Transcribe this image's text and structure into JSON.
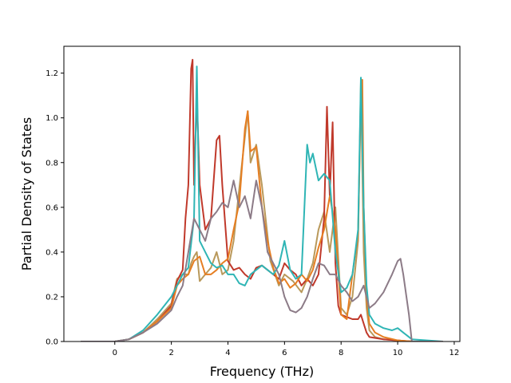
{
  "chart_data": {
    "type": "line",
    "xlabel": "Frequency (THz)",
    "ylabel": "Partial Density of States",
    "xlim": [
      -1.8,
      12.2
    ],
    "ylim": [
      0,
      1.32
    ],
    "xticks": [
      0,
      2,
      4,
      6,
      8,
      10,
      12
    ],
    "yticks": [
      0.0,
      0.2,
      0.4,
      0.6,
      0.8,
      1.0,
      1.2
    ],
    "xtick_labels": [
      "0",
      "2",
      "4",
      "6",
      "8",
      "10",
      "12"
    ],
    "ytick_labels": [
      "0.0",
      "0.2",
      "0.4",
      "0.6",
      "0.8",
      "1.0",
      "1.2"
    ],
    "grid": false,
    "series": [
      {
        "color": "#b9995b",
        "x": [
          -1.2,
          0,
          0.5,
          1.0,
          1.5,
          2.0,
          2.2,
          2.4,
          2.6,
          2.7,
          2.8,
          2.9,
          3.0,
          3.2,
          3.4,
          3.6,
          3.8,
          4.0,
          4.2,
          4.5,
          4.7,
          4.8,
          5.0,
          5.2,
          5.5,
          5.8,
          6.0,
          6.3,
          6.6,
          6.8,
          7.0,
          7.2,
          7.4,
          7.6,
          7.8,
          8.0,
          8.2,
          8.4,
          8.6,
          8.7,
          8.8,
          8.9,
          9.0,
          9.2,
          9.5,
          10.0,
          10.5,
          11.6
        ],
        "y": [
          0,
          0,
          0.01,
          0.04,
          0.1,
          0.17,
          0.28,
          0.3,
          0.3,
          0.35,
          0.38,
          0.4,
          0.27,
          0.3,
          0.33,
          0.4,
          0.3,
          0.32,
          0.45,
          0.8,
          1.03,
          0.8,
          0.88,
          0.7,
          0.36,
          0.25,
          0.3,
          0.27,
          0.22,
          0.28,
          0.35,
          0.5,
          0.58,
          0.4,
          0.6,
          0.15,
          0.12,
          0.2,
          0.45,
          1.16,
          0.4,
          0.15,
          0.05,
          0.02,
          0.01,
          0.005,
          0,
          0
        ]
      },
      {
        "color": "#c0392b",
        "x": [
          -1.2,
          0,
          0.5,
          1.0,
          1.5,
          2.0,
          2.2,
          2.4,
          2.5,
          2.6,
          2.7,
          2.75,
          2.8,
          2.9,
          3.0,
          3.2,
          3.4,
          3.6,
          3.7,
          3.8,
          4.0,
          4.2,
          4.4,
          4.6,
          4.8,
          5.0,
          5.2,
          5.4,
          5.6,
          5.8,
          6.0,
          6.2,
          6.4,
          6.6,
          6.8,
          7.0,
          7.2,
          7.4,
          7.5,
          7.6,
          7.7,
          7.8,
          7.9,
          8.0,
          8.2,
          8.4,
          8.6,
          8.7,
          8.8,
          8.9,
          9.0,
          9.5,
          10.0,
          10.5,
          11.6
        ],
        "y": [
          0,
          0,
          0.01,
          0.04,
          0.09,
          0.16,
          0.27,
          0.32,
          0.55,
          0.7,
          1.22,
          1.26,
          0.7,
          1.1,
          0.7,
          0.5,
          0.55,
          0.9,
          0.92,
          0.7,
          0.36,
          0.32,
          0.33,
          0.3,
          0.28,
          0.33,
          0.34,
          0.32,
          0.3,
          0.28,
          0.35,
          0.32,
          0.3,
          0.25,
          0.28,
          0.25,
          0.3,
          0.55,
          1.05,
          0.65,
          0.98,
          0.35,
          0.16,
          0.12,
          0.11,
          0.1,
          0.1,
          0.12,
          0.08,
          0.04,
          0.02,
          0.01,
          0.005,
          0,
          0
        ]
      },
      {
        "color": "#e67e22",
        "x": [
          -1.2,
          0,
          0.5,
          1.0,
          1.5,
          2.0,
          2.2,
          2.4,
          2.6,
          2.8,
          3.0,
          3.2,
          3.4,
          3.6,
          3.8,
          4.0,
          4.2,
          4.4,
          4.6,
          4.7,
          4.8,
          5.0,
          5.2,
          5.4,
          5.6,
          5.8,
          6.0,
          6.2,
          6.4,
          6.6,
          6.8,
          7.0,
          7.2,
          7.4,
          7.6,
          7.7,
          7.8,
          8.0,
          8.2,
          8.4,
          8.6,
          8.7,
          8.75,
          8.8,
          8.9,
          9.0,
          9.2,
          9.5,
          10.0,
          10.5,
          11.6
        ],
        "y": [
          0,
          0,
          0.01,
          0.04,
          0.09,
          0.15,
          0.25,
          0.28,
          0.3,
          0.36,
          0.38,
          0.3,
          0.3,
          0.32,
          0.35,
          0.37,
          0.5,
          0.62,
          0.95,
          1.03,
          0.85,
          0.87,
          0.6,
          0.45,
          0.33,
          0.26,
          0.28,
          0.24,
          0.26,
          0.3,
          0.27,
          0.32,
          0.42,
          0.5,
          0.65,
          0.58,
          0.5,
          0.12,
          0.1,
          0.3,
          0.48,
          1.1,
          1.17,
          0.6,
          0.2,
          0.08,
          0.04,
          0.02,
          0.005,
          0,
          0
        ]
      },
      {
        "color": "#2fb5b5",
        "x": [
          -1.2,
          0,
          0.5,
          1.0,
          1.5,
          2.0,
          2.2,
          2.4,
          2.6,
          2.8,
          2.9,
          3.0,
          3.2,
          3.4,
          3.6,
          3.8,
          4.0,
          4.2,
          4.4,
          4.6,
          4.8,
          5.0,
          5.2,
          5.4,
          5.6,
          5.8,
          6.0,
          6.2,
          6.4,
          6.6,
          6.8,
          6.9,
          7.0,
          7.2,
          7.4,
          7.6,
          7.8,
          8.0,
          8.2,
          8.4,
          8.6,
          8.7,
          8.8,
          8.9,
          9.0,
          9.2,
          9.5,
          9.8,
          10.0,
          10.2,
          10.5,
          11.6
        ],
        "y": [
          0,
          0,
          0.01,
          0.05,
          0.12,
          0.2,
          0.25,
          0.3,
          0.33,
          0.55,
          1.23,
          0.45,
          0.4,
          0.35,
          0.33,
          0.34,
          0.3,
          0.3,
          0.26,
          0.25,
          0.3,
          0.32,
          0.34,
          0.32,
          0.3,
          0.34,
          0.45,
          0.32,
          0.28,
          0.3,
          0.88,
          0.8,
          0.84,
          0.72,
          0.75,
          0.72,
          0.4,
          0.22,
          0.24,
          0.3,
          0.5,
          1.18,
          0.6,
          0.25,
          0.12,
          0.08,
          0.06,
          0.05,
          0.06,
          0.04,
          0.01,
          0
        ]
      },
      {
        "color": "#8c7b87",
        "x": [
          -1.2,
          0,
          0.5,
          1.0,
          1.5,
          2.0,
          2.2,
          2.4,
          2.6,
          2.8,
          3.0,
          3.2,
          3.4,
          3.6,
          3.8,
          4.0,
          4.2,
          4.4,
          4.6,
          4.8,
          5.0,
          5.2,
          5.4,
          5.6,
          5.8,
          6.0,
          6.2,
          6.4,
          6.6,
          6.8,
          7.0,
          7.2,
          7.4,
          7.6,
          7.8,
          8.0,
          8.2,
          8.4,
          8.6,
          8.8,
          9.0,
          9.2,
          9.5,
          9.8,
          10.0,
          10.1,
          10.2,
          10.4,
          10.5,
          11.6
        ],
        "y": [
          0,
          0,
          0.01,
          0.04,
          0.08,
          0.14,
          0.2,
          0.25,
          0.4,
          0.55,
          0.5,
          0.45,
          0.55,
          0.58,
          0.62,
          0.6,
          0.72,
          0.6,
          0.65,
          0.55,
          0.72,
          0.6,
          0.4,
          0.35,
          0.3,
          0.2,
          0.14,
          0.13,
          0.15,
          0.2,
          0.28,
          0.35,
          0.34,
          0.3,
          0.3,
          0.25,
          0.22,
          0.18,
          0.2,
          0.25,
          0.15,
          0.17,
          0.22,
          0.3,
          0.36,
          0.37,
          0.3,
          0.12,
          0,
          0
        ]
      }
    ]
  }
}
